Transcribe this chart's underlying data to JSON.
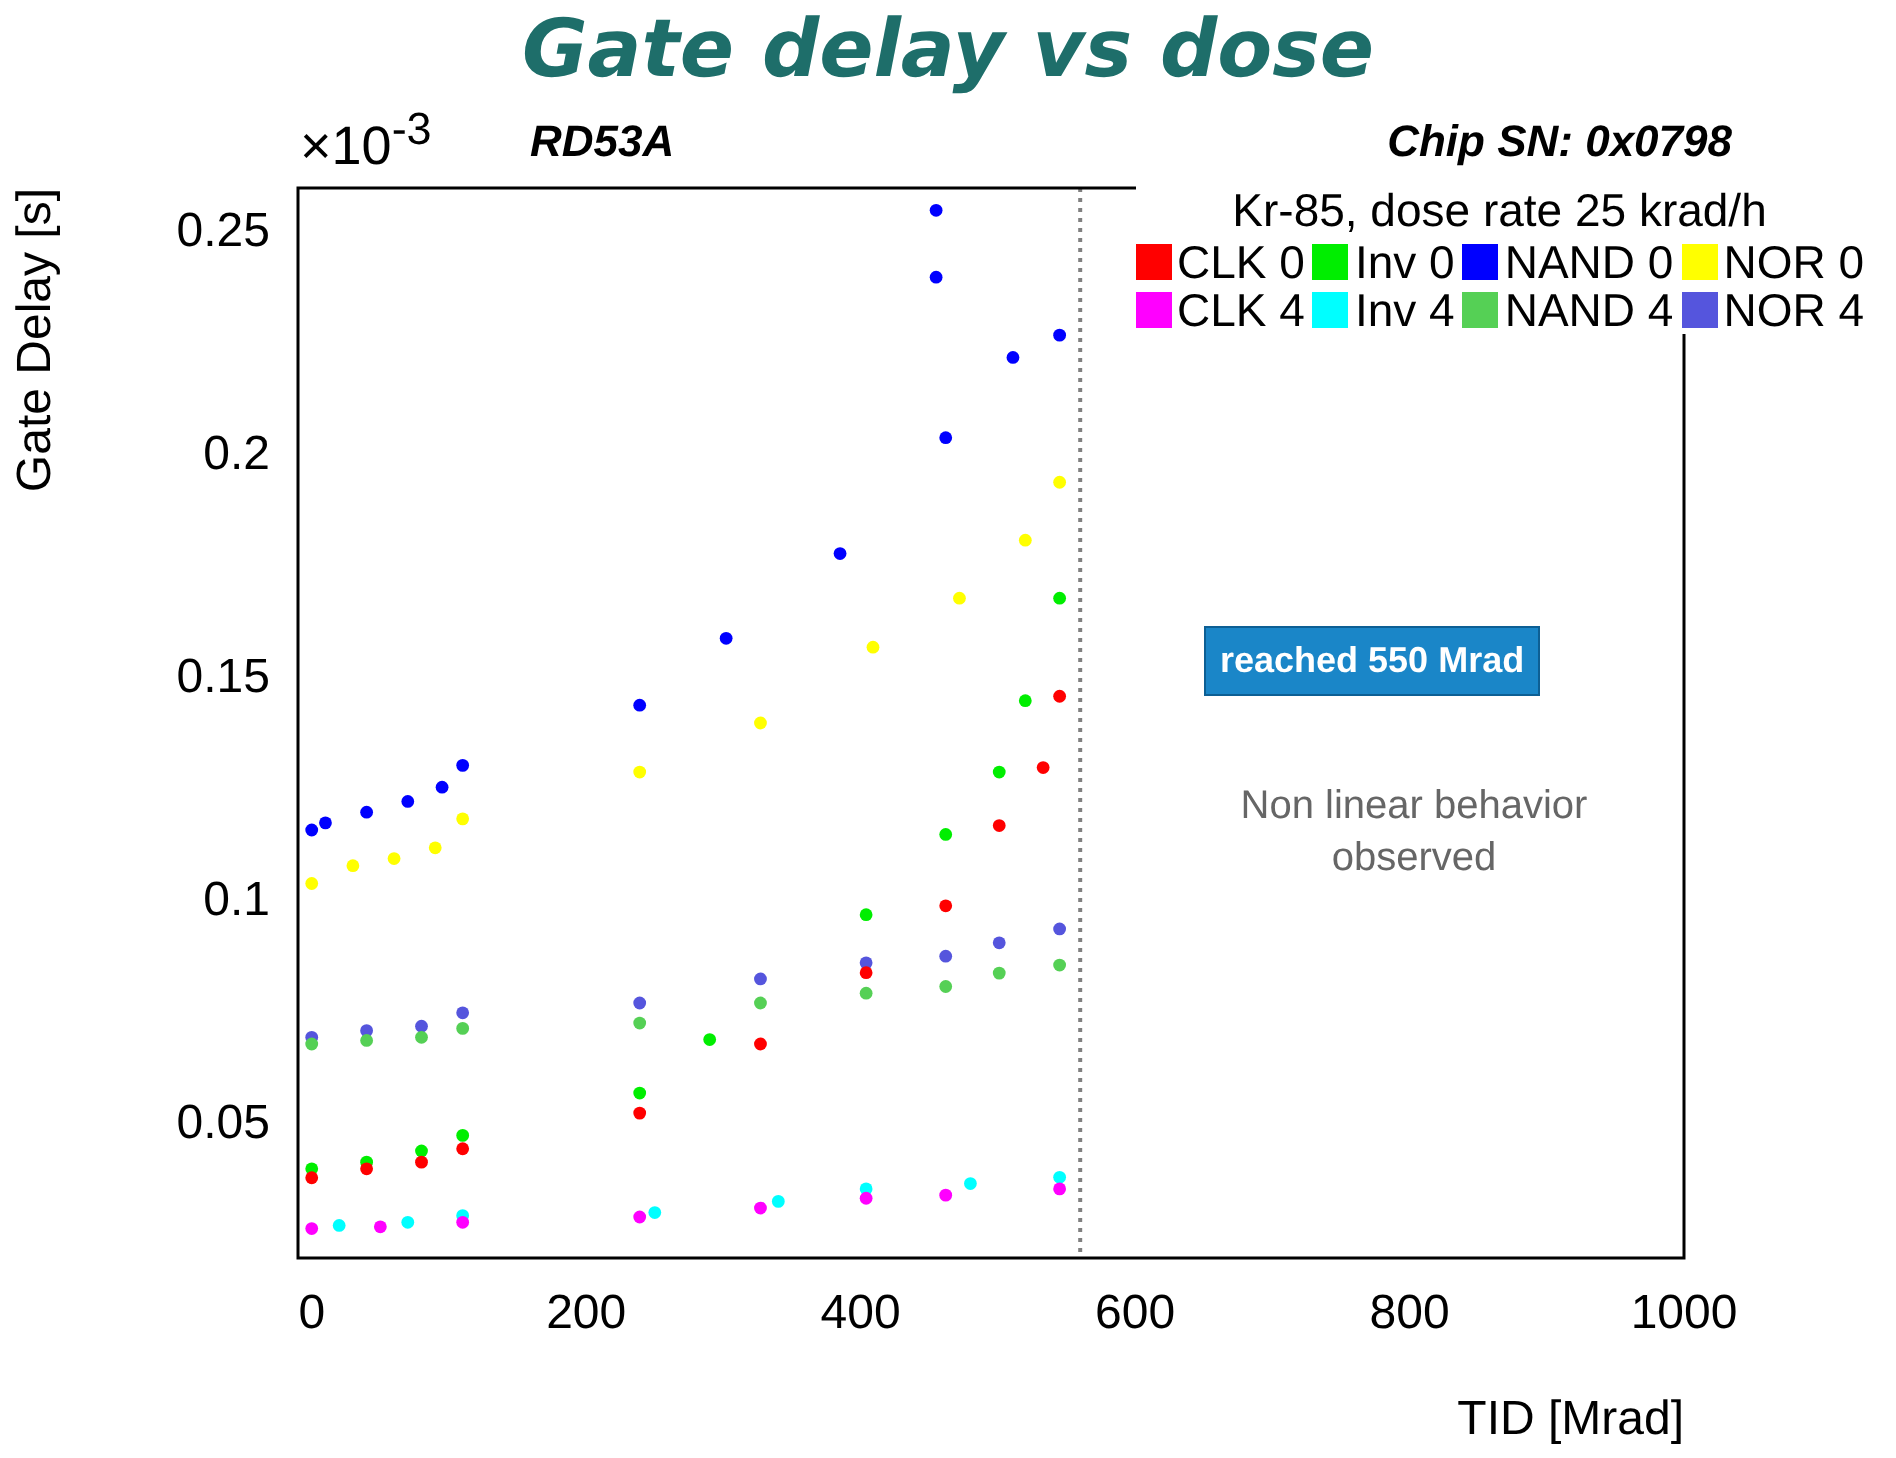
{
  "chart_data": {
    "type": "scatter",
    "title": "Gate delay vs dose",
    "xlabel": "TID [Mrad]",
    "ylabel": "Gate Delay [s]",
    "legend_title": "Kr-85, dose rate 25 krad/h",
    "annotations": [
      "×10$^{-3}$",
      "RD53A",
      "Chip SN: 0x0798",
      "reached 550 Mrad",
      "Non linear behavior observed"
    ],
    "xlim": [
      -10,
      1000
    ],
    "xticks": [
      0,
      200,
      400,
      600,
      800,
      1000
    ],
    "ylim": [
      0.02,
      0.26
    ],
    "yticks": [
      0.05,
      0.1,
      0.15,
      0.2,
      0.25
    ],
    "grid": false,
    "legend": "top right",
    "marker": "circle",
    "ref_lines": [
      {
        "axis": "x",
        "value": 560,
        "color": "#808080",
        "line_style": "dotted"
      }
    ],
    "series": [
      {
        "name": "CLK 0",
        "color": "#ff0000",
        "x": [
          0,
          40,
          80,
          110,
          239,
          327,
          404,
          462,
          501,
          533,
          545
        ],
        "values": [
          0.038,
          0.04,
          0.0415,
          0.0445,
          0.0525,
          0.068,
          0.084,
          0.099,
          0.117,
          0.13,
          0.146
        ]
      },
      {
        "name": "Inv 0",
        "color": "#00ee00",
        "x": [
          0,
          40,
          80,
          110,
          239,
          290,
          404,
          462,
          501,
          520,
          545
        ],
        "values": [
          0.04,
          0.0415,
          0.044,
          0.0475,
          0.057,
          0.069,
          0.097,
          0.115,
          0.129,
          0.145,
          0.168
        ]
      },
      {
        "name": "NAND 0",
        "color": "#0000ff",
        "x": [
          0,
          10,
          40,
          70,
          95,
          110,
          239,
          302,
          385,
          462,
          511,
          545,
          455,
          455
        ],
        "values": [
          0.116,
          0.1176,
          0.12,
          0.1224,
          0.1256,
          0.1305,
          0.144,
          0.159,
          0.178,
          0.204,
          0.222,
          0.227,
          0.255,
          0.24
        ]
      },
      {
        "name": "NOR 0",
        "color": "#ffff00",
        "x": [
          0,
          30,
          60,
          90,
          110,
          239,
          327,
          409,
          472,
          520,
          545
        ],
        "values": [
          0.104,
          0.108,
          0.1096,
          0.112,
          0.1185,
          0.129,
          0.14,
          0.157,
          0.168,
          0.181,
          0.194
        ]
      },
      {
        "name": "CLK 4",
        "color": "#ff00ff",
        "x": [
          0,
          50,
          110,
          239,
          327,
          404,
          462,
          545
        ],
        "values": [
          0.0266,
          0.027,
          0.028,
          0.0292,
          0.0312,
          0.0334,
          0.0341,
          0.0355
        ]
      },
      {
        "name": "Inv 4",
        "color": "#00ffff",
        "x": [
          20,
          70,
          110,
          250,
          340,
          404,
          480,
          545
        ],
        "values": [
          0.0273,
          0.028,
          0.0295,
          0.0302,
          0.0327,
          0.0355,
          0.0367,
          0.0381
        ]
      },
      {
        "name": "NAND 4",
        "color": "#55d055",
        "x": [
          0,
          40,
          80,
          110,
          239,
          327,
          404,
          462,
          501,
          545
        ],
        "values": [
          0.068,
          0.0688,
          0.0695,
          0.0715,
          0.0727,
          0.0772,
          0.0794,
          0.0809,
          0.0839,
          0.0857
        ]
      },
      {
        "name": "NOR 4",
        "color": "#5555dd",
        "x": [
          0,
          40,
          80,
          110,
          239,
          327,
          404,
          462,
          501,
          545
        ],
        "values": [
          0.0695,
          0.071,
          0.072,
          0.075,
          0.0772,
          0.0826,
          0.0862,
          0.0877,
          0.0907,
          0.0938
        ]
      }
    ]
  }
}
